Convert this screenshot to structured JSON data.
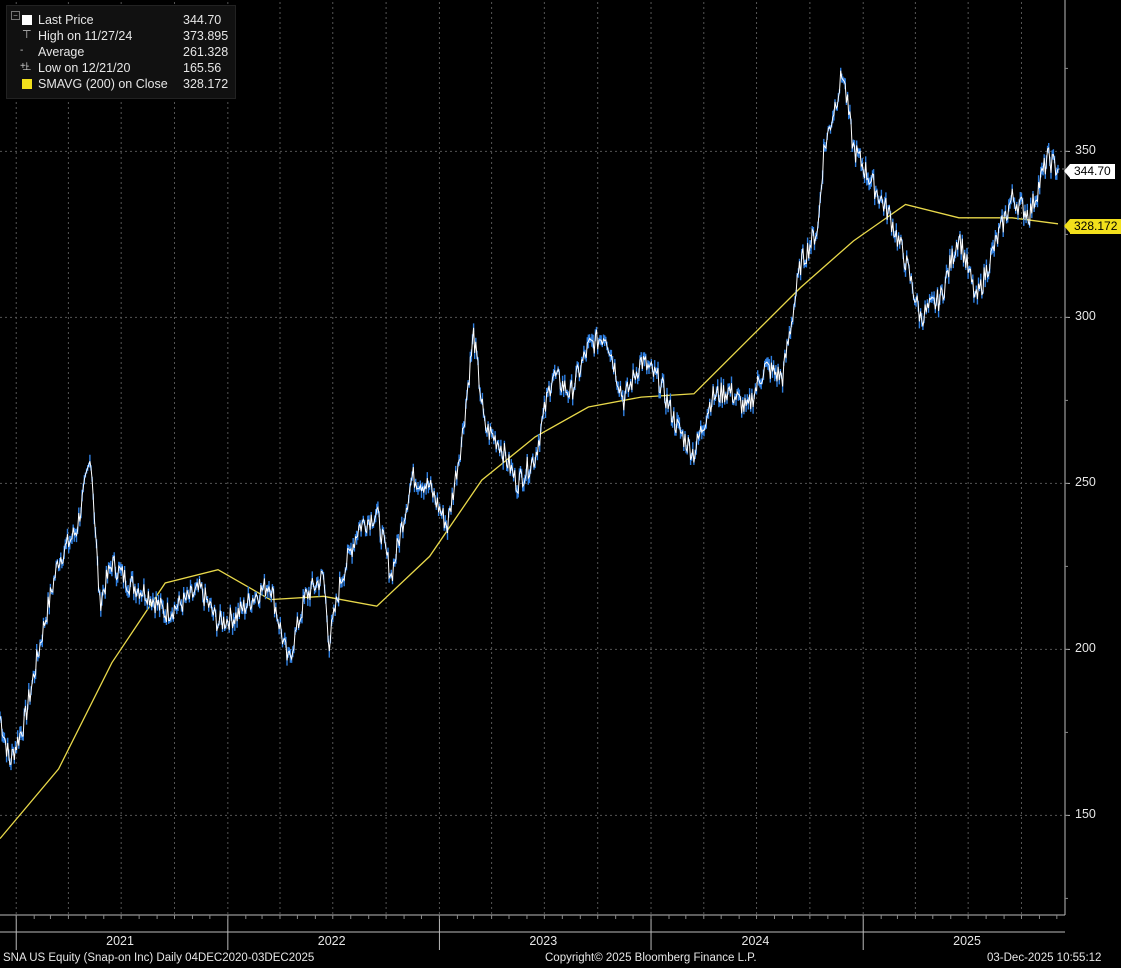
{
  "legend": {
    "last_price_label": "Last Price",
    "last_price_value": "344.70",
    "high_label": "High on 11/27/24",
    "high_value": "373.895",
    "average_label": "Average",
    "average_value": "261.328",
    "low_label": "Low on 12/21/20",
    "low_value": "165.56",
    "sma_label": "SMAVG (200)  on Close",
    "sma_value": "328.172"
  },
  "tags": {
    "last": "344.70",
    "sma": "328.172"
  },
  "footer": {
    "left": "SNA US Equity (Snap-on Inc) Daily 04DEC2020-03DEC2025",
    "center": "Copyright© 2025 Bloomberg Finance L.P.",
    "right": "03-Dec-2025 10:55:12"
  },
  "colors": {
    "price": "#ffffff",
    "price_wick": "#2f7fe0",
    "sma": "#e8d84a",
    "background": "#000000",
    "grid": "#555555"
  },
  "chart_data": {
    "type": "line",
    "title": "SNA US Equity (Snap-on Inc) Daily 04DEC2020-03DEC2025",
    "xlabel": "",
    "ylabel": "",
    "ylim": [
      120,
      395
    ],
    "yticks": [
      "150",
      "200",
      "250",
      "300",
      "350"
    ],
    "xlim": [
      "2020-12-04",
      "2025-12-03"
    ],
    "xtick_labels": [
      "2021",
      "2022",
      "2023",
      "2024",
      "2025"
    ],
    "grid": true,
    "legend_position": "top-left",
    "series": [
      {
        "name": "Last Price",
        "x": [
          "2020-12-04",
          "2020-12-21",
          "2021-01-15",
          "2021-02-15",
          "2021-03-15",
          "2021-04-15",
          "2021-05-10",
          "2021-05-25",
          "2021-06-15",
          "2021-07-15",
          "2021-08-15",
          "2021-09-15",
          "2021-10-15",
          "2021-11-15",
          "2021-12-15",
          "2022-01-15",
          "2022-02-15",
          "2022-03-15",
          "2022-04-15",
          "2022-05-15",
          "2022-06-15",
          "2022-06-25",
          "2022-07-15",
          "2022-08-15",
          "2022-09-15",
          "2022-10-10",
          "2022-11-15",
          "2022-12-15",
          "2023-01-15",
          "2023-02-10",
          "2023-03-01",
          "2023-03-20",
          "2023-04-15",
          "2023-05-15",
          "2023-06-15",
          "2023-07-15",
          "2023-08-15",
          "2023-09-15",
          "2023-10-15",
          "2023-11-15",
          "2023-12-15",
          "2024-01-15",
          "2024-02-15",
          "2024-03-15",
          "2024-04-15",
          "2024-05-15",
          "2024-06-15",
          "2024-07-15",
          "2024-08-15",
          "2024-09-15",
          "2024-10-15",
          "2024-10-25",
          "2024-11-27",
          "2024-12-15",
          "2025-01-15",
          "2025-02-15",
          "2025-03-15",
          "2025-04-10",
          "2025-05-15",
          "2025-06-15",
          "2025-07-15",
          "2025-08-15",
          "2025-09-15",
          "2025-10-15",
          "2025-11-15",
          "2025-12-03"
        ],
        "y": [
          180,
          166,
          178,
          205,
          227,
          236,
          258,
          214,
          226,
          220,
          217,
          211,
          214,
          218,
          208,
          210,
          216,
          220,
          196,
          216,
          222,
          202,
          221,
          237,
          241,
          222,
          252,
          249,
          237,
          265,
          295,
          267,
          262,
          250,
          258,
          283,
          277,
          291,
          295,
          275,
          287,
          281,
          267,
          259,
          276,
          278,
          272,
          285,
          282,
          316,
          327,
          350,
          373.9,
          351,
          341,
          331,
          317,
          300,
          306,
          325,
          305,
          321,
          336,
          331,
          348,
          344.7
        ]
      },
      {
        "name": "SMAVG (200)  on Close",
        "x": [
          "2020-12-04",
          "2021-03-15",
          "2021-06-15",
          "2021-09-15",
          "2021-12-15",
          "2022-03-15",
          "2022-06-15",
          "2022-09-15",
          "2022-12-15",
          "2023-03-15",
          "2023-06-15",
          "2023-09-15",
          "2023-12-15",
          "2024-03-15",
          "2024-06-15",
          "2024-09-15",
          "2024-12-15",
          "2025-03-15",
          "2025-06-15",
          "2025-09-15",
          "2025-12-03"
        ],
        "y": [
          143,
          164,
          196,
          220,
          224,
          215,
          216,
          213,
          228,
          251,
          264,
          273,
          276,
          277,
          293,
          309,
          323,
          334,
          330,
          330,
          328.2
        ]
      }
    ]
  }
}
